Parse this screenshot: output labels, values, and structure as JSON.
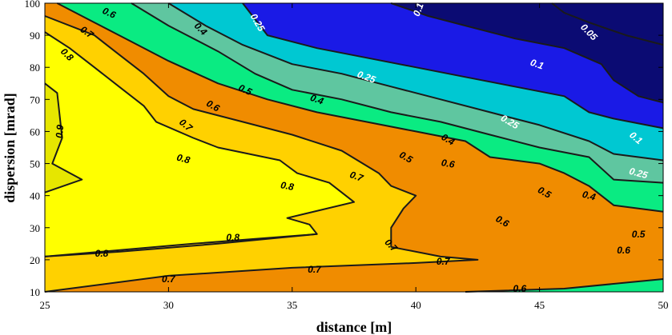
{
  "chart_data": {
    "type": "contour",
    "title": "",
    "xlabel": "distance [m]",
    "ylabel": "dispersion [mrad]",
    "xlim": [
      25,
      50
    ],
    "ylim": [
      10,
      100
    ],
    "xticks": [
      "25",
      "30",
      "35",
      "40",
      "45",
      "50"
    ],
    "yticks": [
      "10",
      "20",
      "30",
      "40",
      "50",
      "60",
      "70",
      "80",
      "90",
      "100"
    ],
    "grid": false,
    "legend": "none",
    "levels": [
      0.05,
      0.1,
      0.25,
      0.4,
      0.5,
      0.6,
      0.7,
      0.8,
      0.9
    ],
    "colors": {
      "lt_0.05": "#0b0b73",
      "0.05-0.1": "#0b0b73",
      "0.1-0.25": "#1a1ae6",
      "0.25-0.4": "#00c8d2",
      "0.4-0.5": "#5fc6a0",
      "0.5-0.6": "#0aeb82",
      "0.6-0.7": "#f08c00",
      "0.7-0.8": "#ffd100",
      "0.8-0.9": "#ffff00",
      "gt_0.9": "#e6e600"
    },
    "contours": [
      {
        "level": 0.9,
        "label": "0.9",
        "label_color": "#000000",
        "points": [
          [
            25,
            75
          ],
          [
            25.5,
            72
          ],
          [
            25.7,
            58
          ],
          [
            25.3,
            50
          ],
          [
            26.5,
            45
          ],
          [
            25,
            41
          ]
        ]
      },
      {
        "level": 0.8,
        "label": "0.8",
        "label_color": "#000000",
        "points": [
          [
            25,
            91
          ],
          [
            26,
            86
          ],
          [
            27,
            80
          ],
          [
            28,
            74
          ],
          [
            29,
            68
          ],
          [
            29.5,
            63
          ],
          [
            31,
            58
          ],
          [
            32,
            55
          ],
          [
            34.5,
            51
          ],
          [
            35.2,
            47
          ],
          [
            36.5,
            44
          ],
          [
            37.5,
            38
          ],
          [
            34.8,
            33
          ],
          [
            35.7,
            31
          ],
          [
            36,
            28
          ],
          [
            31,
            25
          ],
          [
            25,
            21
          ]
        ]
      },
      {
        "level": 0.8,
        "label": "0.8",
        "label_color": "#000000",
        "points": [
          [
            36,
            28
          ],
          [
            32,
            25
          ],
          [
            28,
            22.5
          ],
          [
            25,
            21
          ]
        ]
      },
      {
        "level": 0.7,
        "label": "0.7",
        "label_color": "#000000",
        "points": [
          [
            25,
            96
          ],
          [
            27,
            90
          ],
          [
            28,
            84
          ],
          [
            29,
            78
          ],
          [
            30,
            71
          ],
          [
            31,
            67
          ],
          [
            33,
            63
          ],
          [
            35,
            59
          ],
          [
            37,
            54
          ],
          [
            38.5,
            47
          ],
          [
            39,
            43
          ],
          [
            40,
            40
          ],
          [
            39.5,
            36
          ],
          [
            39,
            30
          ],
          [
            39,
            24
          ],
          [
            41,
            21
          ],
          [
            42.5,
            20
          ],
          [
            40,
            19
          ],
          [
            35,
            17.5
          ],
          [
            30,
            15
          ],
          [
            25,
            10
          ]
        ]
      },
      {
        "level": 0.6,
        "label": "0.6",
        "label_color": "#000000",
        "points": [
          [
            25.5,
            100
          ],
          [
            27,
            94
          ],
          [
            28.5,
            88
          ],
          [
            30,
            82
          ],
          [
            32,
            75
          ],
          [
            34,
            70
          ],
          [
            36,
            66
          ],
          [
            38,
            63
          ],
          [
            40,
            60
          ],
          [
            42,
            57
          ],
          [
            43,
            52
          ],
          [
            45,
            50
          ],
          [
            46,
            47
          ],
          [
            47,
            43
          ],
          [
            48,
            37
          ],
          [
            50,
            35
          ]
        ]
      },
      {
        "level": 0.6,
        "label": "0.6",
        "label_color": "#000000",
        "points": [
          [
            42,
            10
          ],
          [
            46,
            11
          ],
          [
            50,
            14
          ]
        ]
      },
      {
        "level": 0.5,
        "label": "0.5",
        "label_color": "#000000",
        "points": [
          [
            28.5,
            100
          ],
          [
            30,
            93
          ],
          [
            32,
            85
          ],
          [
            33.5,
            78
          ],
          [
            35,
            73
          ],
          [
            37,
            70
          ],
          [
            39,
            66
          ],
          [
            41,
            63
          ],
          [
            43,
            59
          ],
          [
            45,
            55
          ],
          [
            47,
            52
          ],
          [
            48,
            45
          ],
          [
            50,
            44
          ]
        ]
      },
      {
        "level": 0.4,
        "label": "0.4",
        "label_color": "#000000",
        "points": [
          [
            30,
            100
          ],
          [
            31.5,
            93
          ],
          [
            33,
            87
          ],
          [
            35,
            81
          ],
          [
            37,
            78
          ],
          [
            39,
            74
          ],
          [
            41,
            70
          ],
          [
            43,
            66
          ],
          [
            45,
            62
          ],
          [
            47,
            57
          ],
          [
            48,
            53
          ],
          [
            50,
            51
          ]
        ]
      },
      {
        "level": 0.25,
        "label": "0.25",
        "label_color": "#ffffff",
        "points": [
          [
            33,
            100
          ],
          [
            33.5,
            95
          ],
          [
            34,
            90
          ],
          [
            36,
            86
          ],
          [
            38,
            83
          ],
          [
            40,
            80
          ],
          [
            42,
            77
          ],
          [
            44,
            74
          ],
          [
            46,
            71
          ],
          [
            47,
            66
          ],
          [
            48,
            64
          ],
          [
            50,
            61
          ]
        ]
      },
      {
        "level": 0.1,
        "label": "0.1",
        "label_color": "#ffffff",
        "points": [
          [
            39,
            100
          ],
          [
            40.5,
            96
          ],
          [
            42,
            93
          ],
          [
            44,
            89
          ],
          [
            46,
            86
          ],
          [
            47.5,
            81
          ],
          [
            48,
            76
          ],
          [
            49,
            71
          ],
          [
            50,
            69
          ]
        ]
      },
      {
        "level": 0.05,
        "label": "0.05",
        "label_color": "#ffffff",
        "points": [
          [
            45.5,
            100
          ],
          [
            46,
            97
          ],
          [
            47,
            94
          ],
          [
            48.5,
            90
          ],
          [
            50,
            87
          ]
        ]
      }
    ],
    "contour_labels": [
      {
        "text": "0.9",
        "x": 25.6,
        "y": 60,
        "angle": -85,
        "color": "#000000"
      },
      {
        "text": "0.8",
        "x": 25.9,
        "y": 84,
        "angle": 45,
        "color": "#000000"
      },
      {
        "text": "0.8",
        "x": 30.6,
        "y": 51.5,
        "angle": 15,
        "color": "#000000"
      },
      {
        "text": "0.8",
        "x": 34.8,
        "y": 43,
        "angle": 10,
        "color": "#000000"
      },
      {
        "text": "0.8",
        "x": 27.3,
        "y": 22,
        "angle": 0,
        "color": "#000000"
      },
      {
        "text": "0.8",
        "x": 32.6,
        "y": 27,
        "angle": 0,
        "color": "#000000"
      },
      {
        "text": "0.7",
        "x": 26.7,
        "y": 91,
        "angle": 35,
        "color": "#000000"
      },
      {
        "text": "0.7",
        "x": 30.7,
        "y": 62,
        "angle": 40,
        "color": "#000000"
      },
      {
        "text": "0.7",
        "x": 37.6,
        "y": 46,
        "angle": 20,
        "color": "#000000"
      },
      {
        "text": "0.7",
        "x": 39.0,
        "y": 24.5,
        "angle": 45,
        "color": "#000000"
      },
      {
        "text": "0.7",
        "x": 30.0,
        "y": 14,
        "angle": 0,
        "color": "#000000"
      },
      {
        "text": "0.7",
        "x": 35.9,
        "y": 17,
        "angle": 0,
        "color": "#000000"
      },
      {
        "text": "0.7",
        "x": 41.1,
        "y": 19.5,
        "angle": 0,
        "color": "#000000"
      },
      {
        "text": "0.6",
        "x": 27.6,
        "y": 97,
        "angle": 25,
        "color": "#000000"
      },
      {
        "text": "0.6",
        "x": 31.8,
        "y": 68,
        "angle": 30,
        "color": "#000000"
      },
      {
        "text": "0.6",
        "x": 41.3,
        "y": 50,
        "angle": 10,
        "color": "#000000"
      },
      {
        "text": "0.6",
        "x": 43.5,
        "y": 32,
        "angle": 30,
        "color": "#000000"
      },
      {
        "text": "0.6",
        "x": 48.4,
        "y": 23,
        "angle": 0,
        "color": "#000000"
      },
      {
        "text": "0.6",
        "x": 44.2,
        "y": 11,
        "angle": 0,
        "color": "#000000"
      },
      {
        "text": "0.5",
        "x": 33.1,
        "y": 73,
        "angle": 25,
        "color": "#000000"
      },
      {
        "text": "0.5",
        "x": 39.6,
        "y": 52,
        "angle": 30,
        "color": "#000000"
      },
      {
        "text": "0.5",
        "x": 45.2,
        "y": 41,
        "angle": 30,
        "color": "#000000"
      },
      {
        "text": "0.5",
        "x": 49.0,
        "y": 28,
        "angle": 0,
        "color": "#000000"
      },
      {
        "text": "0.4",
        "x": 31.3,
        "y": 92,
        "angle": 45,
        "color": "#000000"
      },
      {
        "text": "0.4",
        "x": 36.0,
        "y": 70,
        "angle": 20,
        "color": "#000000"
      },
      {
        "text": "0.4",
        "x": 41.3,
        "y": 57.5,
        "angle": 30,
        "color": "#000000"
      },
      {
        "text": "0.4",
        "x": 47.0,
        "y": 40,
        "angle": 15,
        "color": "#000000"
      },
      {
        "text": "0.25",
        "x": 33.6,
        "y": 94,
        "angle": 60,
        "color": "#ffffff"
      },
      {
        "text": "0.25",
        "x": 38.0,
        "y": 77,
        "angle": 20,
        "color": "#ffffff"
      },
      {
        "text": "0.25",
        "x": 43.8,
        "y": 63,
        "angle": 30,
        "color": "#ffffff"
      },
      {
        "text": "0.25",
        "x": 49.0,
        "y": 47,
        "angle": 15,
        "color": "#ffffff"
      },
      {
        "text": "0.1",
        "x": 40.1,
        "y": 98,
        "angle": -70,
        "color": "#ffffff"
      },
      {
        "text": "0.1",
        "x": 44.9,
        "y": 81,
        "angle": 20,
        "color": "#ffffff"
      },
      {
        "text": "0.1",
        "x": 48.9,
        "y": 58,
        "angle": 40,
        "color": "#ffffff"
      },
      {
        "text": "0.05",
        "x": 47.0,
        "y": 91,
        "angle": 45,
        "color": "#ffffff"
      }
    ]
  }
}
